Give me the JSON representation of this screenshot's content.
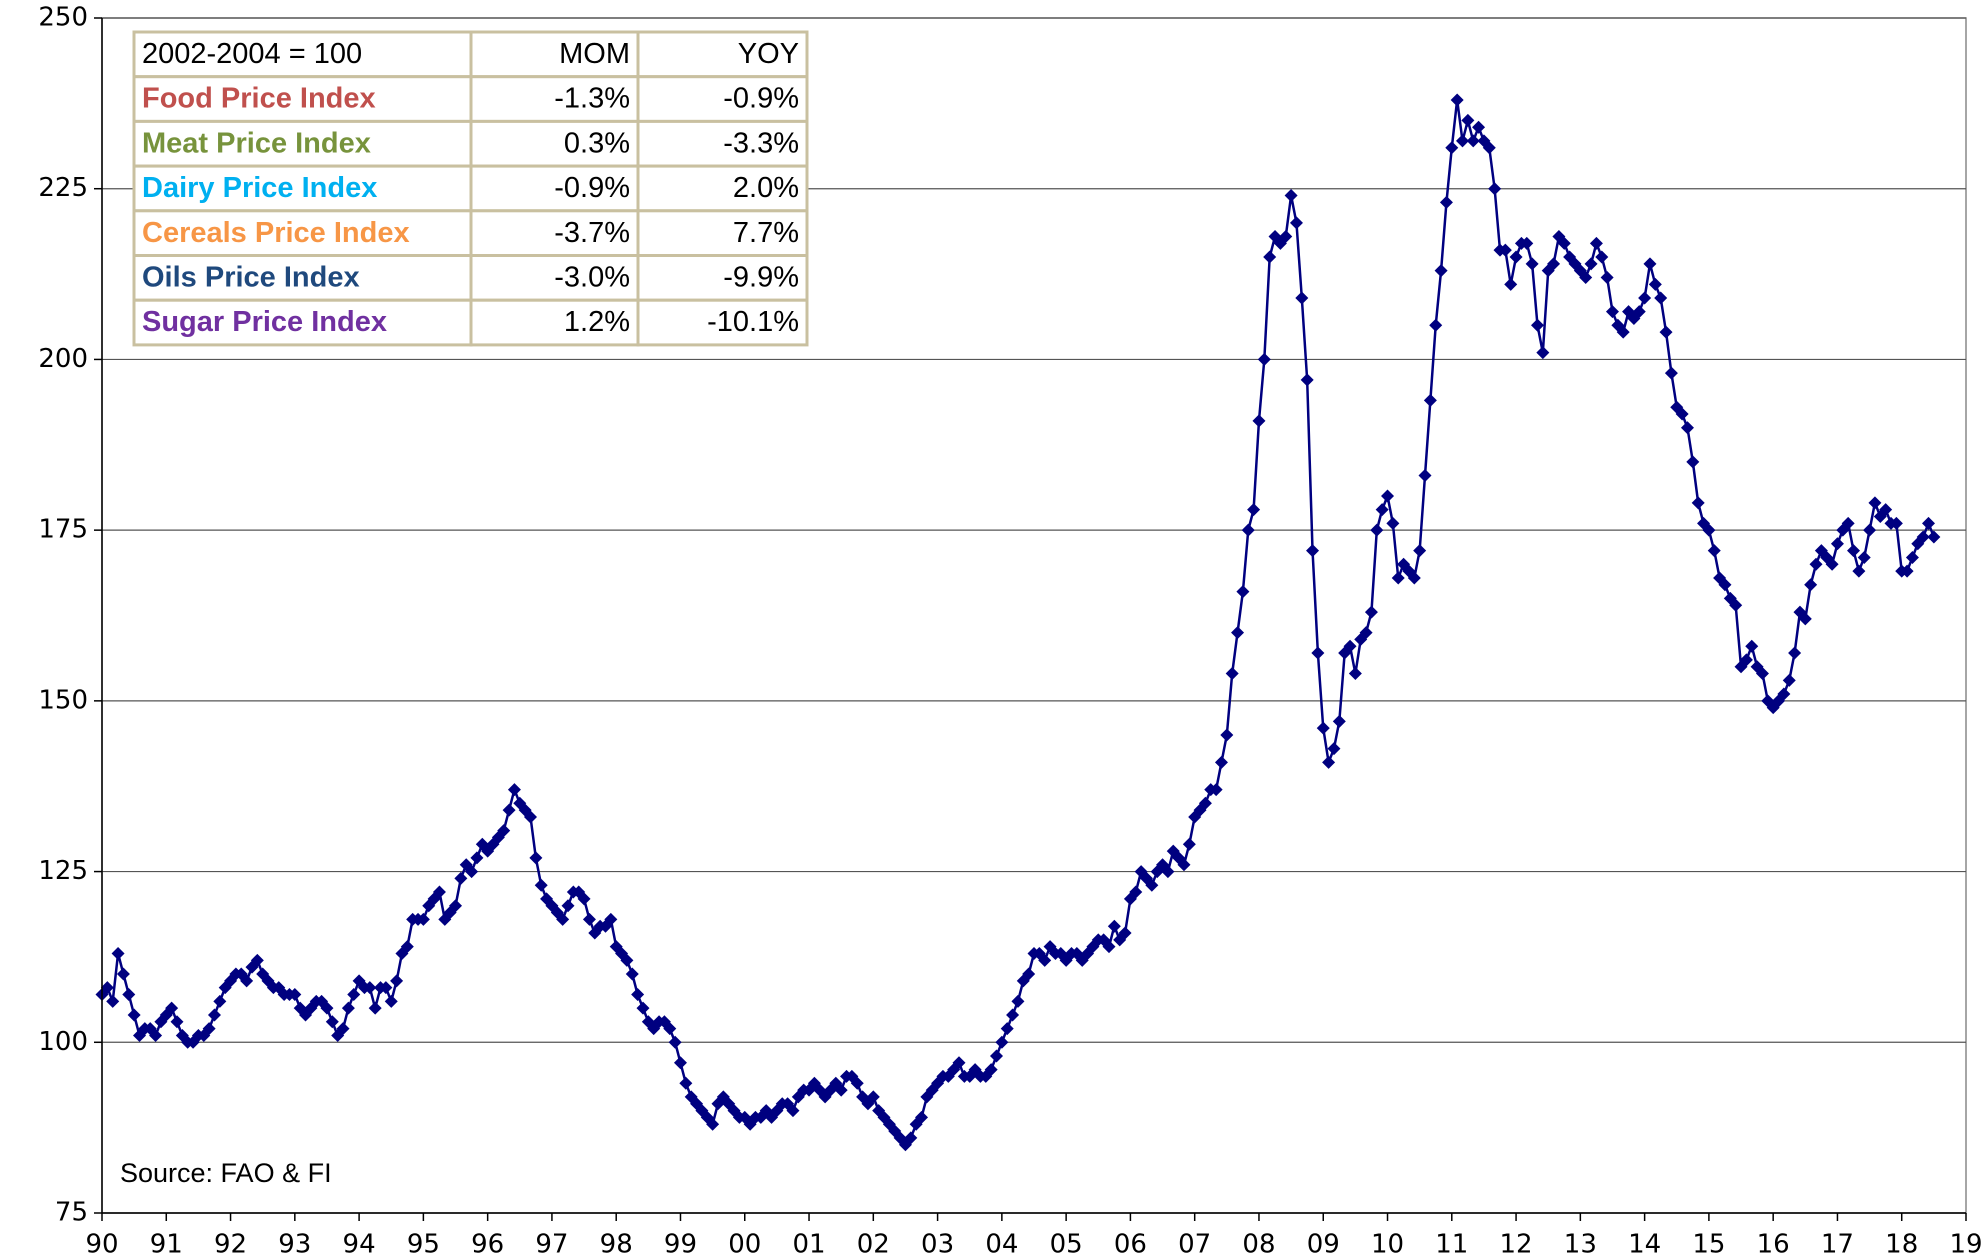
{
  "chart_data": {
    "type": "line",
    "annotation": "Source: FAO & FI",
    "ylim": [
      75,
      250
    ],
    "yticks": [
      75,
      100,
      125,
      150,
      175,
      200,
      225,
      250
    ],
    "grid": true,
    "categories": [
      "90",
      null,
      null,
      null,
      null,
      null,
      null,
      null,
      null,
      null,
      null,
      null,
      "91",
      null,
      null,
      null,
      null,
      null,
      null,
      null,
      null,
      null,
      null,
      null,
      "92",
      null,
      null,
      null,
      null,
      null,
      null,
      null,
      null,
      null,
      null,
      null,
      "93",
      null,
      null,
      null,
      null,
      null,
      null,
      null,
      null,
      null,
      null,
      null,
      "94",
      null,
      null,
      null,
      null,
      null,
      null,
      null,
      null,
      null,
      null,
      null,
      "95",
      null,
      null,
      null,
      null,
      null,
      null,
      null,
      null,
      null,
      null,
      null,
      "96",
      null,
      null,
      null,
      null,
      null,
      null,
      null,
      null,
      null,
      null,
      null,
      "97",
      null,
      null,
      null,
      null,
      null,
      null,
      null,
      null,
      null,
      null,
      null,
      "98",
      null,
      null,
      null,
      null,
      null,
      null,
      null,
      null,
      null,
      null,
      null,
      "99",
      null,
      null,
      null,
      null,
      null,
      null,
      null,
      null,
      null,
      null,
      null,
      "00",
      null,
      null,
      null,
      null,
      null,
      null,
      null,
      null,
      null,
      null,
      null,
      "01",
      null,
      null,
      null,
      null,
      null,
      null,
      null,
      null,
      null,
      null,
      null,
      "02",
      null,
      null,
      null,
      null,
      null,
      null,
      null,
      null,
      null,
      null,
      null,
      "03",
      null,
      null,
      null,
      null,
      null,
      null,
      null,
      null,
      null,
      null,
      null,
      "04",
      null,
      null,
      null,
      null,
      null,
      null,
      null,
      null,
      null,
      null,
      null,
      "05",
      null,
      null,
      null,
      null,
      null,
      null,
      null,
      null,
      null,
      null,
      null,
      "06",
      null,
      null,
      null,
      null,
      null,
      null,
      null,
      null,
      null,
      null,
      null,
      "07",
      null,
      null,
      null,
      null,
      null,
      null,
      null,
      null,
      null,
      null,
      null,
      "08",
      null,
      null,
      null,
      null,
      null,
      null,
      null,
      null,
      null,
      null,
      null,
      "09",
      null,
      null,
      null,
      null,
      null,
      null,
      null,
      null,
      null,
      null,
      null,
      "10",
      null,
      null,
      null,
      null,
      null,
      null,
      null,
      null,
      null,
      null,
      null,
      "11",
      null,
      null,
      null,
      null,
      null,
      null,
      null,
      null,
      null,
      null,
      null,
      "12",
      null,
      null,
      null,
      null,
      null,
      null,
      null,
      null,
      null,
      null,
      null,
      "13",
      null,
      null,
      null,
      null,
      null,
      null,
      null,
      null,
      null,
      null,
      null,
      "14",
      null,
      null,
      null,
      null,
      null,
      null,
      null,
      null,
      null,
      null,
      null,
      "15",
      null,
      null,
      null,
      null,
      null,
      null,
      null,
      null,
      null,
      null,
      null,
      "16",
      null,
      null,
      null,
      null,
      null,
      null,
      null,
      null,
      null,
      null,
      null,
      "17",
      null,
      null,
      null,
      null,
      null,
      null,
      null,
      null,
      null,
      null,
      null,
      "18",
      null,
      null,
      null,
      null,
      null,
      null,
      null,
      null,
      null,
      null,
      null,
      "19"
    ],
    "series": [
      {
        "color": "#000080",
        "values": [
          107,
          108,
          106,
          113,
          110,
          107,
          104,
          101,
          102,
          102,
          101,
          103,
          104,
          105,
          103,
          101,
          100,
          100,
          101,
          101,
          102,
          104,
          106,
          108,
          109,
          110,
          110,
          109,
          111,
          112,
          110,
          109,
          108,
          108,
          107,
          107,
          107,
          105,
          104,
          105,
          106,
          106,
          105,
          103,
          101,
          102,
          105,
          107,
          109,
          108,
          108,
          105,
          108,
          108,
          106,
          109,
          113,
          114,
          118,
          118,
          118,
          120,
          121,
          122,
          118,
          119,
          120,
          124,
          126,
          125,
          127,
          129,
          128,
          129,
          130,
          131,
          134,
          137,
          135,
          134,
          133,
          127,
          123,
          121,
          120,
          119,
          118,
          120,
          122,
          122,
          121,
          118,
          116,
          117,
          117,
          118,
          114,
          113,
          112,
          110,
          107,
          105,
          103,
          102,
          103,
          103,
          102,
          100,
          97,
          94,
          92,
          91,
          90,
          89,
          88,
          91,
          92,
          91,
          90,
          89,
          89,
          88,
          89,
          89,
          90,
          89,
          90,
          91,
          91,
          90,
          92,
          93,
          93,
          94,
          93,
          92,
          93,
          94,
          93,
          95,
          95,
          94,
          92,
          91,
          92,
          90,
          89,
          88,
          87,
          86,
          85,
          86,
          88,
          89,
          92,
          93,
          94,
          95,
          95,
          96,
          97,
          95,
          95,
          96,
          95,
          95,
          96,
          98,
          100,
          102,
          104,
          106,
          109,
          110,
          113,
          113,
          112,
          114,
          113,
          113,
          112,
          113,
          113,
          112,
          113,
          114,
          115,
          115,
          114,
          117,
          115,
          116,
          121,
          122,
          125,
          124,
          123,
          125,
          126,
          125,
          128,
          127,
          126,
          129,
          133,
          134,
          135,
          137,
          137,
          141,
          145,
          154,
          160,
          166,
          175,
          178,
          191,
          200,
          215,
          218,
          217,
          218,
          224,
          220,
          209,
          197,
          172,
          157,
          146,
          141,
          143,
          147,
          157,
          158,
          154,
          159,
          160,
          163,
          175,
          178,
          180,
          176,
          168,
          170,
          169,
          168,
          172,
          183,
          194,
          205,
          213,
          223,
          231,
          238,
          232,
          235,
          232,
          234,
          232,
          231,
          225,
          216,
          216,
          211,
          215,
          217,
          217,
          214,
          205,
          201,
          213,
          214,
          218,
          217,
          215,
          214,
          213,
          212,
          214,
          217,
          215,
          212,
          207,
          205,
          204,
          207,
          206,
          207,
          209,
          214,
          211,
          209,
          204,
          198,
          193,
          192,
          190,
          185,
          179,
          176,
          175,
          172,
          168,
          167,
          165,
          164,
          155,
          156,
          158,
          155,
          154,
          150,
          149,
          150,
          151,
          153,
          157,
          163,
          162,
          167,
          170,
          172,
          171,
          170,
          173,
          175,
          176,
          172,
          169,
          171,
          175,
          179,
          177,
          178,
          176,
          176,
          169,
          169,
          171,
          173,
          174,
          176,
          174,
          null,
          null,
          null,
          null,
          null,
          null
        ]
      }
    ],
    "table": {
      "header": [
        "2002-2004 = 100",
        "MOM",
        "YOY"
      ],
      "rows": [
        {
          "name": "Food Price Index",
          "color": "#c0504d",
          "mom": "-1.3%",
          "yoy": "-0.9%"
        },
        {
          "name": "Meat Price Index",
          "color": "#77933c",
          "mom": "0.3%",
          "yoy": "-3.3%"
        },
        {
          "name": "Dairy Price Index",
          "color": "#00b0f0",
          "mom": "-0.9%",
          "yoy": "2.0%"
        },
        {
          "name": "Cereals Price Index",
          "color": "#f79646",
          "mom": "-3.7%",
          "yoy": "7.7%"
        },
        {
          "name": "Oils Price Index",
          "color": "#1f497d",
          "mom": "-3.0%",
          "yoy": "-9.9%"
        },
        {
          "name": "Sugar Price Index",
          "color": "#7030a0",
          "mom": "1.2%",
          "yoy": "-10.1%"
        }
      ]
    }
  }
}
